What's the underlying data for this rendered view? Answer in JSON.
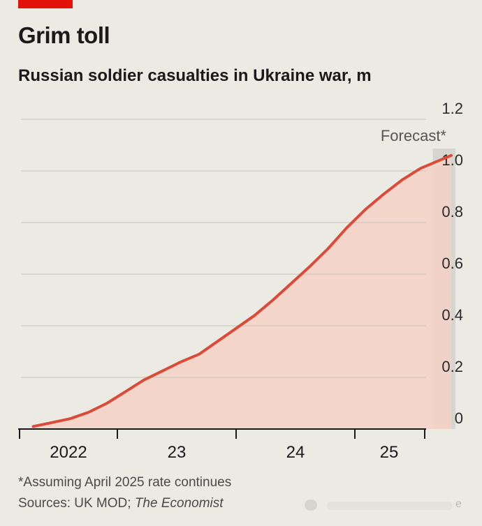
{
  "header": {
    "title": "Grim toll",
    "subtitle": "Russian soldier casualties in Ukraine war, m"
  },
  "footer": {
    "footnote": "*Assuming April 2025 rate continues",
    "source_prefix": "Sources: UK MOD; ",
    "source_italic": "The Economist",
    "watermark_end": "e"
  },
  "colors": {
    "accent": "#e3120b",
    "line": "#db4b3a",
    "area": "#f4d2c4",
    "forecast_band": "#d7d5cf",
    "grid": "#c4c4bd",
    "background": "#ecebe3"
  },
  "chart_data": {
    "type": "area",
    "title": "Grim toll",
    "subtitle": "Russian soldier casualties in Ukraine war, m",
    "unit": "m",
    "ylim": [
      0,
      1.2
    ],
    "yticks": [
      0,
      0.2,
      0.4,
      0.6,
      0.8,
      1.0,
      1.2
    ],
    "ytick_labels": [
      "0",
      "0.2",
      "0.4",
      "0.6",
      "0.8",
      "1.0",
      "1.2"
    ],
    "xlim": [
      2022.0,
      2025.6
    ],
    "xticks": [
      2022,
      2023,
      2024,
      2025
    ],
    "xtick_labels": [
      "2022",
      "23",
      "24",
      "25"
    ],
    "grid": true,
    "forecast": {
      "label": "Forecast*",
      "start": 2025.4,
      "end": 2025.55
    },
    "series": [
      {
        "x": [
          2022.15,
          2022.3,
          2022.45,
          2022.6,
          2022.75,
          2022.9,
          2023.05,
          2023.2,
          2023.35,
          2023.5,
          2023.65,
          2023.8,
          2023.95,
          2024.1,
          2024.25,
          2024.4,
          2024.55,
          2024.7,
          2024.85,
          2025.0,
          2025.15,
          2025.3,
          2025.45,
          2025.55
        ],
        "y": [
          0.01,
          0.025,
          0.04,
          0.065,
          0.1,
          0.145,
          0.19,
          0.225,
          0.26,
          0.29,
          0.34,
          0.39,
          0.44,
          0.5,
          0.565,
          0.63,
          0.7,
          0.78,
          0.85,
          0.91,
          0.965,
          1.01,
          1.04,
          1.06
        ]
      }
    ]
  }
}
